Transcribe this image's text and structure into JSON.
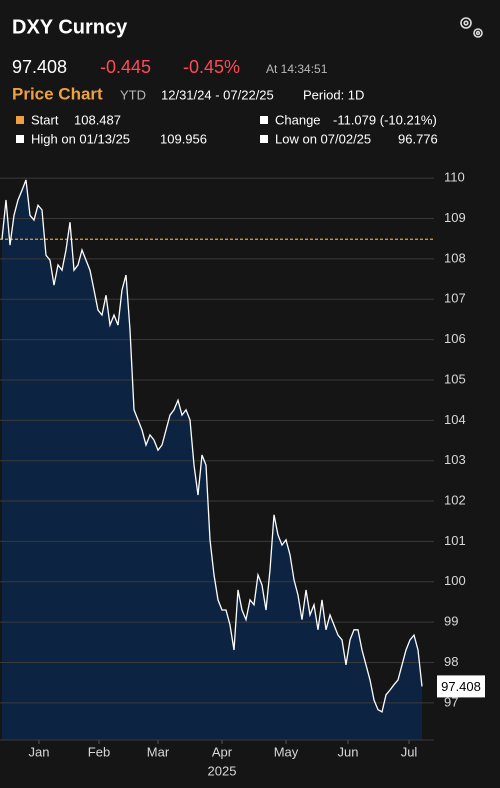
{
  "header": {
    "title": "DXY Curncy",
    "price": "97.408",
    "change": "-0.445",
    "change_pct": "-0.45%",
    "time": "At 14:34:51",
    "tab": "Price Chart",
    "range": "YTD",
    "dates": "12/31/24 - 07/22/25",
    "period": "Period: 1D",
    "stats": {
      "start_label": "Start",
      "start_value": "108.487",
      "change_label": "Change",
      "change_value": "-11.079 (-10.21%)",
      "high_label": "High on 01/13/25",
      "high_value": "109.956",
      "low_label": "Low on 07/02/25",
      "low_value": "96.776"
    }
  },
  "chart_data": {
    "type": "area",
    "xlabel": "2025",
    "series": [
      {
        "color": "#ffffff",
        "fill": "#0c2341",
        "values": [
          108.487,
          109.46,
          108.34,
          109.08,
          109.46,
          109.7,
          109.956,
          109.08,
          108.96,
          109.33,
          109.21,
          108.09,
          107.97,
          107.35,
          107.85,
          107.72,
          108.22,
          108.91,
          107.72,
          107.85,
          108.22,
          107.97,
          107.72,
          107.23,
          106.73,
          106.61,
          107.1,
          106.36,
          106.61,
          106.36,
          107.23,
          107.6,
          106.24,
          104.26,
          104.01,
          103.76,
          103.39,
          103.64,
          103.51,
          103.26,
          103.39,
          103.76,
          104.13,
          104.26,
          104.5,
          104.13,
          104.26,
          104.01,
          102.89,
          102.15,
          103.14,
          102.89,
          101.04,
          100.17,
          99.55,
          99.3,
          99.3,
          98.93,
          98.31,
          99.8,
          99.3,
          99.06,
          99.55,
          99.43,
          100.17,
          99.92,
          99.3,
          100.29,
          101.66,
          101.16,
          100.91,
          101.04,
          100.67,
          100.05,
          99.67,
          99.06,
          99.8,
          99.18,
          99.43,
          98.81,
          99.55,
          98.81,
          99.18,
          98.93,
          98.68,
          98.56,
          97.94,
          98.56,
          98.81,
          98.81,
          98.31,
          97.94,
          97.57,
          97.07,
          96.83,
          96.776,
          97.2,
          97.32,
          97.45,
          97.57,
          97.94,
          98.31,
          98.56,
          98.68,
          98.31,
          97.408
        ]
      }
    ],
    "reference_line": {
      "value": 108.487,
      "color": "#f0a040"
    },
    "xlim": [
      0,
      105
    ],
    "xticks": [
      {
        "value": 9.25,
        "label": "Jan"
      },
      {
        "value": 24.25,
        "label": "Feb"
      },
      {
        "value": 39,
        "label": "Mar"
      },
      {
        "value": 55,
        "label": "Apr"
      },
      {
        "value": 71,
        "label": "May"
      },
      {
        "value": 86.5,
        "label": "Jun"
      },
      {
        "value": 101.75,
        "label": "Jul"
      }
    ],
    "ylim": [
      96.08,
      110.45
    ],
    "yticks": [
      97,
      98,
      99,
      100,
      101,
      102,
      103,
      104,
      105,
      106,
      107,
      108,
      109,
      110
    ],
    "grid": true
  }
}
